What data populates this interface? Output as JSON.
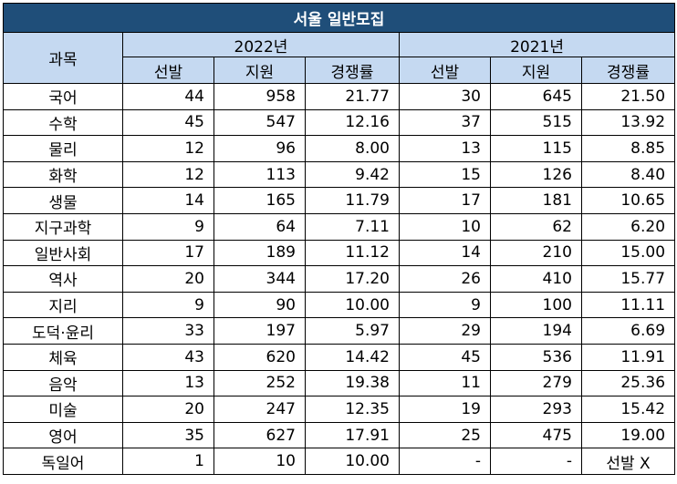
{
  "title": "서울 일반모집",
  "header": {
    "subject": "과목",
    "year1": "2022년",
    "year2": "2021년",
    "cols": [
      "선발",
      "지원",
      "경쟁률"
    ]
  },
  "rows": [
    {
      "subject": "국어",
      "y2022": [
        "44",
        "958",
        "21.77"
      ],
      "y2021": [
        "30",
        "645",
        "21.50"
      ]
    },
    {
      "subject": "수학",
      "y2022": [
        "45",
        "547",
        "12.16"
      ],
      "y2021": [
        "37",
        "515",
        "13.92"
      ]
    },
    {
      "subject": "물리",
      "y2022": [
        "12",
        "96",
        "8.00"
      ],
      "y2021": [
        "13",
        "115",
        "8.85"
      ]
    },
    {
      "subject": "화학",
      "y2022": [
        "12",
        "113",
        "9.42"
      ],
      "y2021": [
        "15",
        "126",
        "8.40"
      ]
    },
    {
      "subject": "생물",
      "y2022": [
        "14",
        "165",
        "11.79"
      ],
      "y2021": [
        "17",
        "181",
        "10.65"
      ]
    },
    {
      "subject": "지구과학",
      "y2022": [
        "9",
        "64",
        "7.11"
      ],
      "y2021": [
        "10",
        "62",
        "6.20"
      ]
    },
    {
      "subject": "일반사회",
      "y2022": [
        "17",
        "189",
        "11.12"
      ],
      "y2021": [
        "14",
        "210",
        "15.00"
      ]
    },
    {
      "subject": "역사",
      "y2022": [
        "20",
        "344",
        "17.20"
      ],
      "y2021": [
        "26",
        "410",
        "15.77"
      ]
    },
    {
      "subject": "지리",
      "y2022": [
        "9",
        "90",
        "10.00"
      ],
      "y2021": [
        "9",
        "100",
        "11.11"
      ]
    },
    {
      "subject": "도덕·윤리",
      "y2022": [
        "33",
        "197",
        "5.97"
      ],
      "y2021": [
        "29",
        "194",
        "6.69"
      ]
    },
    {
      "subject": "체육",
      "y2022": [
        "43",
        "620",
        "14.42"
      ],
      "y2021": [
        "45",
        "536",
        "11.91"
      ]
    },
    {
      "subject": "음악",
      "y2022": [
        "13",
        "252",
        "19.38"
      ],
      "y2021": [
        "11",
        "279",
        "25.36"
      ]
    },
    {
      "subject": "미술",
      "y2022": [
        "20",
        "247",
        "12.35"
      ],
      "y2021": [
        "19",
        "293",
        "15.42"
      ]
    },
    {
      "subject": "영어",
      "y2022": [
        "35",
        "627",
        "17.91"
      ],
      "y2021": [
        "25",
        "475",
        "19.00"
      ]
    },
    {
      "subject": "독일어",
      "y2022": [
        "1",
        "10",
        "10.00"
      ],
      "y2021": [
        "-",
        "-",
        "선발 X"
      ]
    }
  ]
}
